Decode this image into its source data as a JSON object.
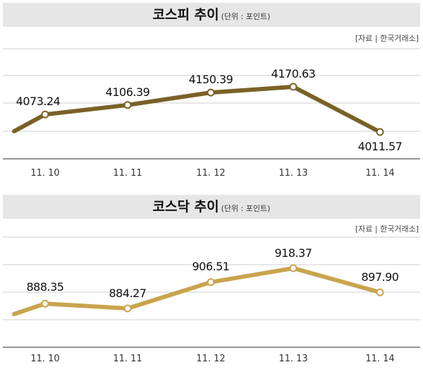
{
  "panels": [
    {
      "title": "코스피 추이",
      "unit": "(단위 : 포인트)",
      "source": "[자료 | 한국거래소]"
    },
    {
      "title": "코스닥 추이",
      "unit": "(단위 : 포인트)",
      "source": "[자료 | 한국거래소]"
    }
  ],
  "chart_data": [
    {
      "type": "line",
      "title": "코스피 추이",
      "categories": [
        "11. 10",
        "11. 11",
        "11. 12",
        "11. 13",
        "11. 14"
      ],
      "values": [
        4073.24,
        4106.39,
        4150.39,
        4170.63,
        4011.57
      ],
      "data_labels": [
        "4073.24",
        "4106.39",
        "4150.39",
        "4170.63",
        "4011.57"
      ],
      "line_color": "#7a6127",
      "grid": true
    },
    {
      "type": "line",
      "title": "코스닥 추이",
      "categories": [
        "11. 10",
        "11. 11",
        "11. 12",
        "11. 13",
        "11. 14"
      ],
      "values": [
        888.35,
        884.27,
        906.51,
        918.37,
        897.9
      ],
      "data_labels": [
        "888.35",
        "884.27",
        "906.51",
        "918.37",
        "897.90"
      ],
      "line_color": "#c9a44e",
      "grid": true
    }
  ]
}
